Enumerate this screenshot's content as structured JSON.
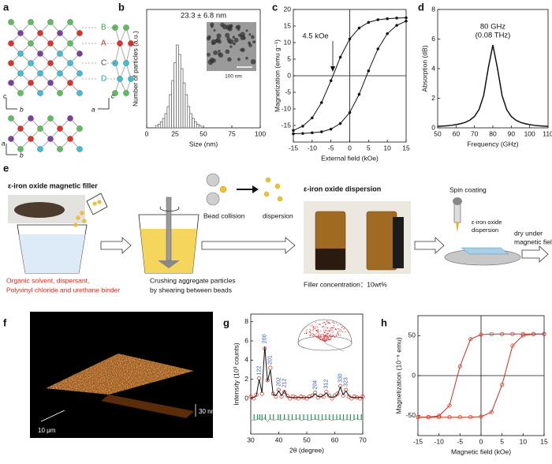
{
  "panel_labels": [
    "a",
    "b",
    "c",
    "d",
    "e",
    "f",
    "g",
    "h"
  ],
  "crystal": {
    "sites": [
      "B",
      "A",
      "C",
      "D"
    ],
    "axis_labels": [
      "c",
      "b",
      "c",
      "a",
      "a",
      "b"
    ]
  },
  "process": {
    "filler_title": "ε-iron oxide magnetic filler",
    "filler_components": [
      "Organic solvent, dispersant,",
      "Polyvinyl chloride and urethane binder"
    ],
    "crushing": [
      "Crushing aggregate particles",
      "by shearing between beads"
    ],
    "bead_collision": "Bead collision",
    "dispersion_step": "dispersion",
    "dispersion_title": "ε-iron oxide dispersion",
    "concentration": "Filler concentration：10wt%",
    "spin_coating": "Spin coating",
    "spin_label": [
      "ε-iron oxide",
      "dispersion"
    ],
    "drying": [
      "dry under",
      "magnetic field"
    ]
  },
  "afm": {
    "height": "30 nm",
    "scale": "10 μm"
  },
  "chart_data": [
    {
      "type": "histogram",
      "xlabel": "Size (nm)",
      "ylabel": "Number of particles (a.u.)",
      "annotation": "23.3 ± 6.8 nm",
      "inset_scale": "100 nm",
      "bins": [
        8,
        10,
        12,
        14,
        16,
        18,
        20,
        22,
        24,
        26,
        28,
        30,
        32,
        34,
        36,
        38,
        40,
        42,
        44,
        46,
        48
      ],
      "counts": [
        2,
        3,
        5,
        8,
        12,
        18,
        28,
        40,
        55,
        70,
        62,
        50,
        38,
        28,
        18,
        12,
        8,
        5,
        3,
        2
      ],
      "color": "#555555",
      "xlim": [
        0,
        100
      ],
      "xticks": [
        0,
        25,
        50,
        75,
        100
      ],
      "ylim": [
        0,
        100
      ]
    },
    {
      "type": "line",
      "xlabel": "External field (kOe)",
      "ylabel": "Magnetization (emu g⁻¹)",
      "annotation": "4.5 kOe",
      "x": [
        -15,
        -12.5,
        -10,
        -7.5,
        -5,
        -2.5,
        0,
        2.5,
        5,
        7.5,
        10,
        12.5,
        15
      ],
      "series": [
        {
          "color": "#111111",
          "marker": "dot",
          "values": [
            -16.5,
            -15.2,
            -12.7,
            -8.1,
            -1.5,
            5.6,
            11.1,
            14.4,
            16.1,
            16.9,
            17.2,
            17.4,
            17.5
          ]
        },
        {
          "color": "#111111",
          "marker": "dot",
          "values": [
            -17.5,
            -17.4,
            -17.2,
            -16.9,
            -16.1,
            -14.4,
            -11.1,
            -5.6,
            1.5,
            8.1,
            12.7,
            15.2,
            16.5
          ]
        }
      ],
      "zero_lines": true,
      "xlim": [
        -15,
        15
      ],
      "xticks": [
        -15,
        -10,
        -5,
        0,
        5,
        10,
        15
      ],
      "ylim": [
        -20,
        20
      ],
      "yticks": [
        -15,
        -10,
        -5,
        0,
        5,
        10,
        15,
        20
      ]
    },
    {
      "type": "line",
      "xlabel": "Frequency (GHz)",
      "ylabel": "Absorption (dB)",
      "annotation": [
        "80 GHz",
        "(0.08 THz)"
      ],
      "x": [
        50,
        52.5,
        55,
        57.5,
        60,
        62.5,
        65,
        67.5,
        70,
        72.5,
        75,
        77.5,
        80,
        82.5,
        85,
        87.5,
        90,
        92.5,
        95,
        97.5,
        100,
        102.5,
        105,
        107.5,
        110
      ],
      "series": [
        {
          "color": "#111111",
          "values": [
            0.1,
            0.12,
            0.14,
            0.17,
            0.22,
            0.28,
            0.37,
            0.52,
            0.77,
            1.24,
            2.19,
            4.03,
            5.6,
            4.03,
            2.19,
            1.24,
            0.77,
            0.52,
            0.37,
            0.28,
            0.22,
            0.17,
            0.14,
            0.12,
            0.1
          ]
        }
      ],
      "xlim": [
        50,
        110
      ],
      "xticks": [
        50,
        60,
        70,
        80,
        90,
        100,
        110
      ],
      "ylim": [
        0,
        8
      ],
      "yticks": [
        0,
        2,
        4,
        6,
        8
      ]
    },
    {
      "type": "line",
      "xlabel": "2θ (degree)",
      "ylabel": "Intensity (10³ counts)",
      "x": [
        30,
        31,
        32,
        33,
        34,
        35,
        36,
        37,
        38,
        39,
        40,
        41,
        42,
        43,
        44,
        45,
        46,
        47,
        48,
        49,
        50,
        51,
        52,
        53,
        54,
        55,
        56,
        57,
        58,
        59,
        60,
        61,
        62,
        63,
        64,
        65,
        66,
        67,
        68,
        69,
        70
      ],
      "series": [
        {
          "color": "#d9291c",
          "marker": "open-circle",
          "line": false,
          "values": [
            0.2,
            0.0,
            0.4,
            2.1,
            0.5,
            5.2,
            1.9,
            3.2,
            0.5,
            0.2,
            0.9,
            0.2,
            0.7,
            0.3,
            0.0,
            0.2,
            0.1,
            0.0,
            0.2,
            0.1,
            0.0,
            0.2,
            0.3,
            0.6,
            0.1,
            0.3,
            0.2,
            0.7,
            0.3,
            0.0,
            0.3,
            0.5,
            1.3,
            0.3,
            0.9,
            0.2,
            0.0,
            0.2,
            0.1,
            0.0,
            0.2
          ]
        },
        {
          "color": "#111111",
          "values": [
            0.1,
            0.1,
            0.3,
            2.0,
            0.6,
            5.4,
            1.8,
            3.0,
            0.4,
            0.3,
            0.8,
            0.3,
            0.8,
            0.2,
            0.1,
            0.1,
            0.1,
            0.1,
            0.1,
            0.1,
            0.1,
            0.1,
            0.2,
            0.5,
            0.2,
            0.2,
            0.3,
            0.6,
            0.2,
            0.1,
            0.2,
            0.4,
            1.2,
            0.4,
            0.8,
            0.3,
            0.1,
            0.1,
            0.1,
            0.1,
            0.1
          ]
        },
        {
          "color": "#aaaaaa",
          "values": [
            -2.2,
            -2.3,
            -2.2,
            -2.1,
            -2.3,
            -2.0,
            -2.4,
            -2.1,
            -2.3,
            -2.2,
            -2.2,
            -2.3,
            -2.1,
            -2.2,
            -2.3,
            -2.2,
            -2.2,
            -2.1,
            -2.3,
            -2.2,
            -2.2,
            -2.3,
            -2.2,
            -2.1,
            -2.2,
            -2.3,
            -2.2,
            -2.2,
            -2.1,
            -2.3,
            -2.2,
            -2.2,
            -2.1,
            -2.3,
            -2.2,
            -2.2,
            -2.3,
            -2.2,
            -2.1,
            -2.2,
            -2.2
          ]
        }
      ],
      "reflections": [
        31.2,
        32.4,
        33.2,
        34.0,
        35.2,
        36.9,
        38.1,
        39.8,
        40.6,
        42.0,
        43.5,
        44.8,
        46.2,
        47.5,
        48.9,
        50.3,
        51.6,
        53.0,
        54.2,
        55.5,
        56.8,
        58.1,
        59.4,
        60.7,
        61.9,
        63.1,
        64.4,
        65.6,
        66.9,
        68.2,
        69.5
      ],
      "reflection_color": "#1a9850",
      "peak_labels": [
        {
          "text": "122",
          "x": 33
        },
        {
          "text": "200",
          "x": 35
        },
        {
          "text": "201",
          "x": 37
        },
        {
          "text": "202",
          "x": 40
        },
        {
          "text": "212",
          "x": 42
        },
        {
          "text": "204",
          "x": 53
        },
        {
          "text": "312",
          "x": 57
        },
        {
          "text": "330",
          "x": 62
        },
        {
          "text": "323",
          "x": 64
        }
      ],
      "peak_label_color": "#3b5ba5",
      "xlim": [
        30,
        70
      ],
      "xticks": [
        30,
        40,
        50,
        60,
        70
      ],
      "ylim": [
        -3.7,
        8.8
      ],
      "yticks": [
        0,
        2,
        4,
        6,
        8
      ]
    },
    {
      "type": "line",
      "xlabel": "Magnetic field (kOe)",
      "ylabel": "Magnetization (10⁻⁶ emu)",
      "x": [
        -15,
        -12.5,
        -10,
        -7.5,
        -5,
        -2.5,
        0,
        2.5,
        5,
        7.5,
        10,
        12.5,
        15
      ],
      "series": [
        {
          "color": "#d9291c",
          "marker": "open-circle",
          "values": [
            -52,
            -51.8,
            -50.3,
            -37.5,
            11.6,
            45.6,
            51.3,
            51.9,
            52,
            52,
            52,
            52,
            52
          ]
        },
        {
          "color": "#d9291c",
          "marker": "open-circle",
          "values": [
            -52,
            -52,
            -52,
            -52,
            -52,
            -51.9,
            -51.3,
            -45.6,
            -11.6,
            37.5,
            50.3,
            51.8,
            52
          ]
        }
      ],
      "zero_lines": true,
      "xlim": [
        -15,
        15
      ],
      "xticks": [
        -15,
        -10,
        -5,
        0,
        5,
        10,
        15
      ],
      "ylim": [
        -75,
        75
      ],
      "yticks": [
        -50,
        0,
        50
      ]
    }
  ]
}
